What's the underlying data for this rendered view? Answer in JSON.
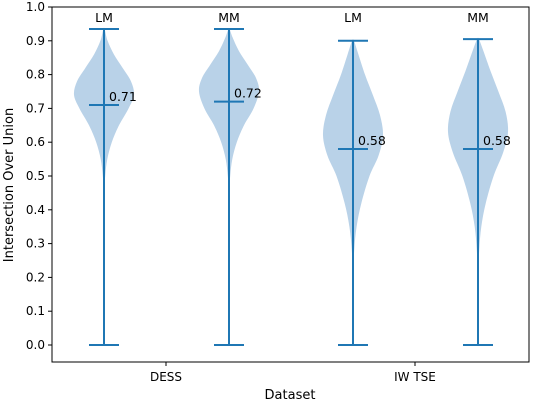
{
  "chart_data": {
    "type": "violin",
    "title": "",
    "xlabel": "Dataset",
    "ylabel": "Intersection Over Union",
    "ylim": [
      0.0,
      1.0
    ],
    "yticks": [
      "0.0",
      "0.1",
      "0.2",
      "0.3",
      "0.4",
      "0.5",
      "0.6",
      "0.7",
      "0.8",
      "0.9",
      "1.0"
    ],
    "categories": [
      "DESS",
      "IW TSE"
    ],
    "grid": false,
    "colors": {
      "violin_fill": "#b9d2e8",
      "stats_line": "#1f77b4",
      "axes": "#000000"
    },
    "series": [
      {
        "category": "DESS",
        "label": "LM",
        "min": 0.0,
        "max": 0.935,
        "mean": 0.71,
        "mean_label": "0.71",
        "density": [
          [
            0.0,
            0.0
          ],
          [
            0.3,
            0.002
          ],
          [
            0.45,
            0.01
          ],
          [
            0.5,
            0.04
          ],
          [
            0.55,
            0.11
          ],
          [
            0.6,
            0.26
          ],
          [
            0.65,
            0.5
          ],
          [
            0.7,
            0.82
          ],
          [
            0.74,
            1.0
          ],
          [
            0.78,
            0.9
          ],
          [
            0.82,
            0.62
          ],
          [
            0.86,
            0.33
          ],
          [
            0.9,
            0.12
          ],
          [
            0.935,
            0.02
          ]
        ]
      },
      {
        "category": "DESS",
        "label": "MM",
        "min": 0.0,
        "max": 0.935,
        "mean": 0.72,
        "mean_label": "0.72",
        "density": [
          [
            0.0,
            0.0
          ],
          [
            0.3,
            0.002
          ],
          [
            0.45,
            0.01
          ],
          [
            0.5,
            0.04
          ],
          [
            0.55,
            0.11
          ],
          [
            0.6,
            0.26
          ],
          [
            0.65,
            0.5
          ],
          [
            0.7,
            0.82
          ],
          [
            0.75,
            1.0
          ],
          [
            0.79,
            0.9
          ],
          [
            0.83,
            0.62
          ],
          [
            0.87,
            0.33
          ],
          [
            0.91,
            0.12
          ],
          [
            0.935,
            0.02
          ]
        ]
      },
      {
        "category": "IW TSE",
        "label": "LM",
        "min": 0.0,
        "max": 0.9,
        "mean": 0.58,
        "mean_label": "0.58",
        "density": [
          [
            0.0,
            0.0
          ],
          [
            0.2,
            0.01
          ],
          [
            0.28,
            0.04
          ],
          [
            0.35,
            0.12
          ],
          [
            0.42,
            0.28
          ],
          [
            0.5,
            0.55
          ],
          [
            0.56,
            0.85
          ],
          [
            0.62,
            1.0
          ],
          [
            0.68,
            0.9
          ],
          [
            0.74,
            0.66
          ],
          [
            0.8,
            0.4
          ],
          [
            0.86,
            0.18
          ],
          [
            0.9,
            0.03
          ]
        ]
      },
      {
        "category": "IW TSE",
        "label": "MM",
        "min": 0.0,
        "max": 0.905,
        "mean": 0.58,
        "mean_label": "0.58",
        "density": [
          [
            0.0,
            0.0
          ],
          [
            0.2,
            0.01
          ],
          [
            0.28,
            0.04
          ],
          [
            0.35,
            0.11
          ],
          [
            0.42,
            0.26
          ],
          [
            0.5,
            0.52
          ],
          [
            0.57,
            0.84
          ],
          [
            0.63,
            1.0
          ],
          [
            0.69,
            0.92
          ],
          [
            0.75,
            0.68
          ],
          [
            0.81,
            0.42
          ],
          [
            0.87,
            0.18
          ],
          [
            0.905,
            0.03
          ]
        ]
      }
    ]
  }
}
